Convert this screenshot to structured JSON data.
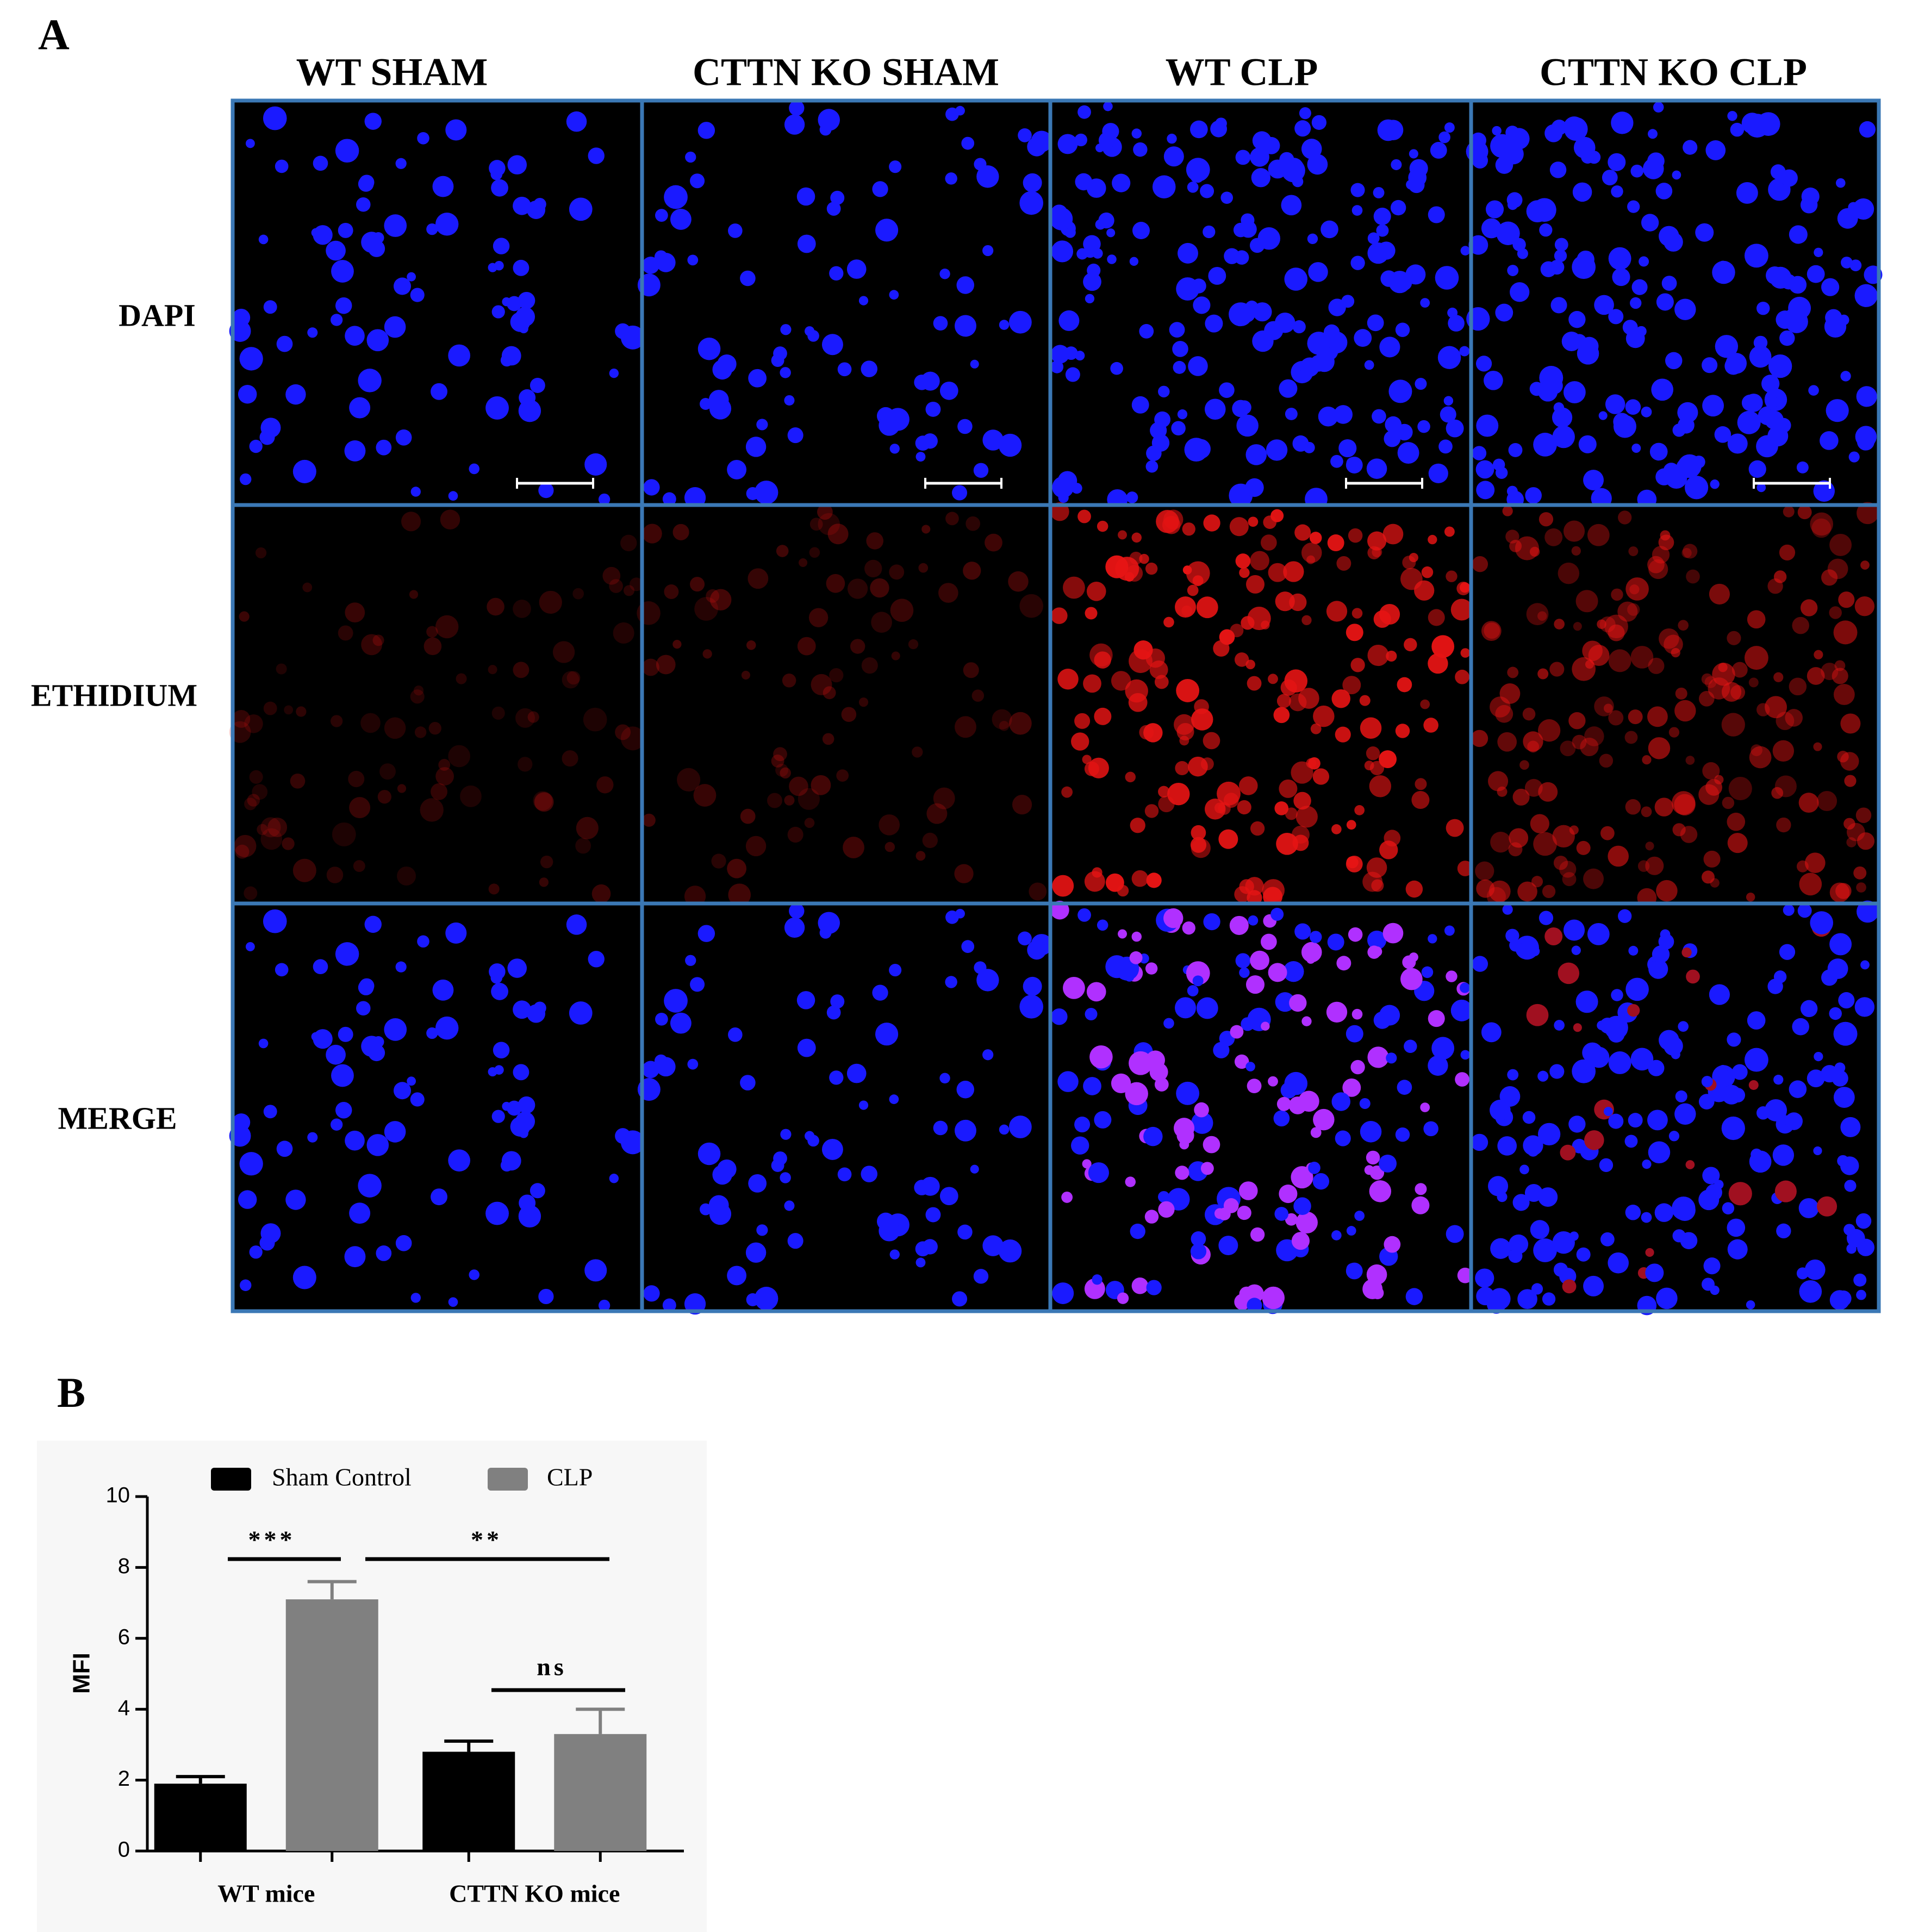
{
  "panel_a": {
    "label": "A",
    "columns": [
      "WT SHAM",
      "CTTN KO SHAM",
      "WT CLP",
      "CTTN KO CLP"
    ],
    "rows": [
      "DAPI",
      "ETHIDIUM",
      "MERGE"
    ]
  },
  "chart_data": {
    "type": "bar",
    "panel_label": "B",
    "categories": [
      "WT mice",
      "CTTN KO mice"
    ],
    "series": [
      {
        "name": "Sham Control",
        "color": "#000000",
        "values": [
          1.9,
          2.8
        ],
        "errors": [
          0.2,
          0.3
        ]
      },
      {
        "name": "CLP",
        "color": "#808080",
        "values": [
          7.1,
          3.3
        ],
        "errors": [
          0.5,
          0.7
        ]
      }
    ],
    "y_label": "MFI",
    "ylim": [
      0,
      10
    ],
    "yticks": [
      0,
      2,
      4,
      6,
      8,
      10
    ],
    "annotations": [
      "***",
      "**",
      "ns"
    ],
    "legend": "top"
  }
}
